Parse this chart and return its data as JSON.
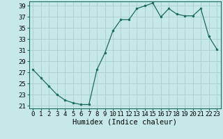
{
  "x": [
    0,
    1,
    2,
    3,
    4,
    5,
    6,
    7,
    8,
    9,
    10,
    11,
    12,
    13,
    14,
    15,
    16,
    17,
    18,
    19,
    20,
    21,
    22,
    23
  ],
  "y": [
    27.5,
    26.0,
    24.5,
    23.0,
    22.0,
    21.5,
    21.2,
    21.2,
    27.5,
    30.5,
    34.5,
    36.5,
    36.5,
    38.5,
    39.0,
    39.5,
    37.0,
    38.5,
    37.5,
    37.2,
    37.2,
    38.5,
    33.5,
    31.2
  ],
  "line_color": "#1a6b5a",
  "marker": ".",
  "marker_size": 4,
  "bg_color": "#c6e8e8",
  "grid_color": "#a8cece",
  "xlabel": "Humidex (Indice chaleur)",
  "ylim": [
    20.5,
    39.8
  ],
  "yticks": [
    21,
    23,
    25,
    27,
    29,
    31,
    33,
    35,
    37,
    39
  ],
  "xticks": [
    0,
    1,
    2,
    3,
    4,
    5,
    6,
    7,
    8,
    9,
    10,
    11,
    12,
    13,
    14,
    15,
    16,
    17,
    18,
    19,
    20,
    21,
    22,
    23
  ],
  "xlabel_fontsize": 7.5,
  "tick_fontsize": 6.5
}
